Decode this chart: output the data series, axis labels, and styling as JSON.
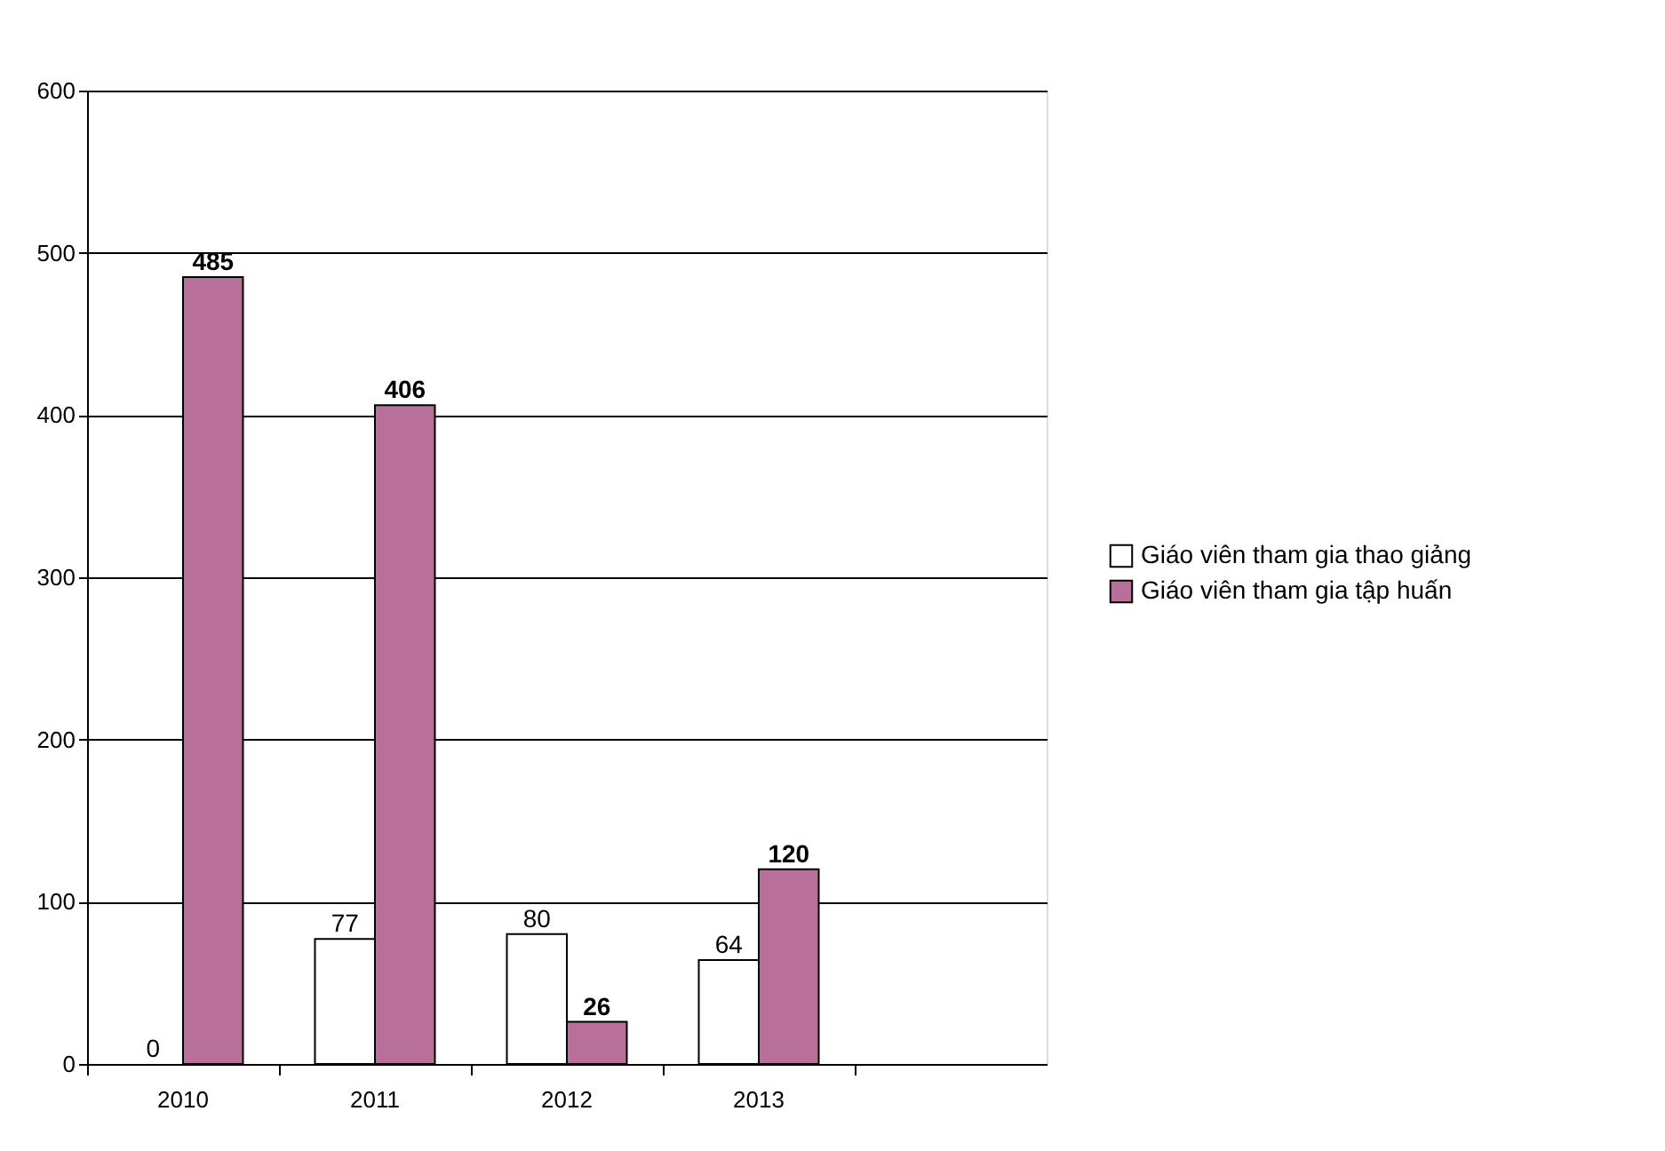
{
  "chart_data": {
    "type": "bar",
    "categories": [
      "2010",
      "2011",
      "2012",
      "2013",
      null
    ],
    "series": [
      {
        "name": "Giáo viên tham gia thao giảng",
        "color": "#ffffff",
        "values": [
          0,
          77,
          80,
          64,
          null
        ]
      },
      {
        "name": "Giáo viên tham gia tập huấn",
        "color": "#b8709a",
        "values": [
          485,
          406,
          26,
          120,
          null
        ]
      }
    ],
    "ylim": [
      0,
      600
    ],
    "yticks": [
      0,
      100,
      200,
      300,
      400,
      500,
      600
    ],
    "grid": "y",
    "legend": "right",
    "data_labels": true
  }
}
